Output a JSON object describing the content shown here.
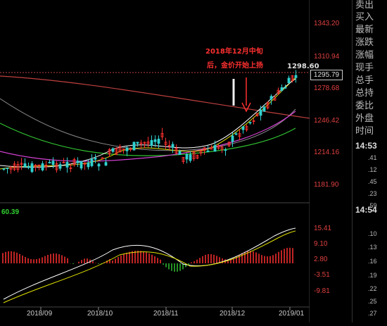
{
  "chart_data": {
    "type": "candlestick",
    "price_axis": [
      "1343.20",
      "1310.94",
      "1278.68",
      "1246.42",
      "1214.16",
      "1181.90"
    ],
    "macd_axis": [
      "15.41",
      "9.10",
      "2.80",
      "-3.51",
      "-9.81"
    ],
    "date_labels": [
      "2018/09",
      "2018/10",
      "2018/11",
      "2018/12",
      "2019/01"
    ],
    "current_price": "1295.79",
    "high_label": "1298.60",
    "indicator_value": "60.39",
    "annotation": [
      "2018年12月中旬",
      "后，金价开始上扬"
    ],
    "colors": {
      "up": "#ff3030",
      "down": "#30d0d0",
      "ma1": "#ffffff",
      "ma2": "#e0e000",
      "ma3": "#d040d0",
      "ma4": "#30c030",
      "ma5": "#c04040"
    }
  },
  "side_panel": {
    "labels": [
      "卖出",
      "买入",
      "最新",
      "涨跌",
      "涨幅",
      "现手",
      "总手",
      "总持",
      "委比",
      "外盘",
      "时间"
    ],
    "time1": "14:53",
    "secs1": [
      ".41",
      ".12",
      ".45",
      ".23",
      ".59"
    ],
    "time2": "14:54",
    "secs2": [
      ".10",
      ".13",
      ".16",
      ".19",
      ".22",
      ".25",
      ".27"
    ]
  }
}
